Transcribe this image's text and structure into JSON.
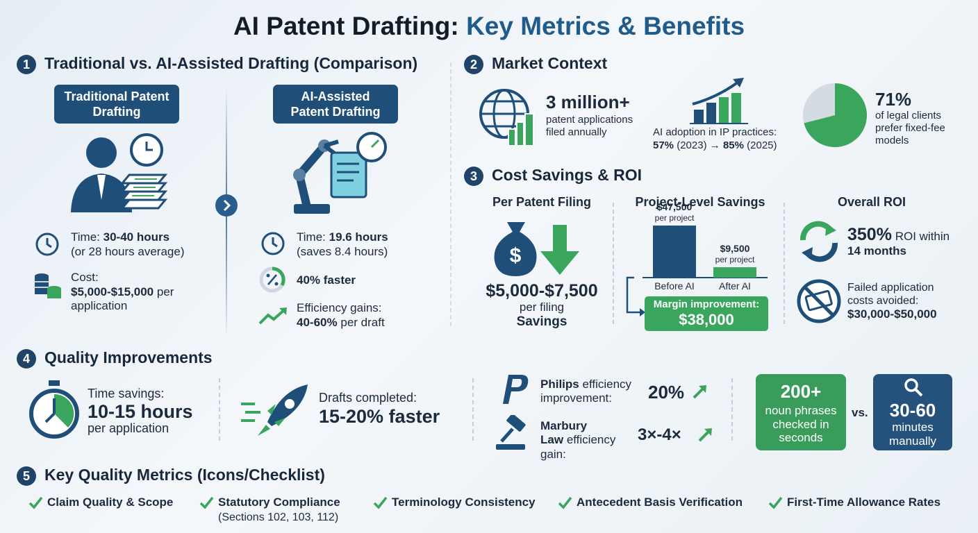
{
  "title": {
    "lead": "AI Patent Drafting:",
    "accent": "Key Metrics & Benefits"
  },
  "comparison": {
    "number": "1",
    "heading": "Traditional vs. AI-Assisted Drafting (Comparison)",
    "traditional": {
      "label": "Traditional Patent Drafting",
      "time_label": "Time:",
      "time_value": "30-40 hours",
      "time_note": "(or 28 hours average)",
      "cost_label": "Cost:",
      "cost_value": "$5,000-$15,000",
      "cost_note": "per application"
    },
    "ai_assisted": {
      "label": "AI-Assisted Patent Drafting",
      "time_label": "Time:",
      "time_value": "19.6 hours",
      "time_note": "(saves 8.4 hours)",
      "speed": "40% faster",
      "efficiency_label": "Efficiency gains:",
      "efficiency_value": "40-60%",
      "efficiency_note": "per draft"
    }
  },
  "market": {
    "number": "2",
    "heading": "Market Context",
    "filings_value": "3 million+",
    "filings_note": "patent applications filed annually",
    "adoption_label": "AI adoption in IP practices:",
    "adoption_from": "57%",
    "adoption_from_year": "(2023) →",
    "adoption_to": "85%",
    "adoption_to_year": "(2025)",
    "pie": {
      "value": 71,
      "label": "71%"
    },
    "pie_note": "of legal clients prefer fixed-fee models"
  },
  "cost_savings": {
    "number": "3",
    "heading": "Cost Savings & ROI",
    "per_filing": {
      "heading": "Per Patent Filing",
      "value": "$5,000-$7,500",
      "unit": "per filing",
      "caption": "Savings"
    },
    "project": {
      "heading": "Project-Level Savings",
      "bars": [
        {
          "name": "Before AI",
          "value": 47500,
          "label": "$47,500",
          "unit": "per project"
        },
        {
          "name": "After AI",
          "value": 9500,
          "label": "$9,500",
          "unit": "per project"
        }
      ],
      "margin_label": "Margin improvement:",
      "margin_value": "$38,000"
    },
    "roi": {
      "heading": "Overall ROI",
      "value": "350%",
      "value_note": "ROI within",
      "period": "14 months",
      "avoided_label": "Failed application costs avoided:",
      "avoided_value": "$30,000-$50,000"
    }
  },
  "quality": {
    "number": "4",
    "heading": "Quality Improvements",
    "time_label": "Time savings:",
    "time_value": "10-15 hours",
    "time_note": "per application",
    "drafts_label": "Drafts completed:",
    "drafts_value": "15-20% faster",
    "philips_name": "Philips",
    "philips_label": "efficiency improvement:",
    "philips_value": "20%",
    "marbury_name": "Marbury Law",
    "marbury_label": "efficiency gain:",
    "marbury_value": "3×-4×",
    "auto_value": "200+",
    "auto_note": "noun phrases checked in seconds",
    "versus": "vs.",
    "manual_value": "30-60",
    "manual_note": "minutes manually"
  },
  "checklist": {
    "number": "5",
    "heading": "Key Quality Metrics (Icons/Checklist)",
    "items": [
      {
        "text": "Claim Quality & Scope"
      },
      {
        "text": "Statutory Compliance",
        "note": "(Sections 102, 103, 112)"
      },
      {
        "text": "Terminology Consistency"
      },
      {
        "text": "Antecedent Basis Verification"
      },
      {
        "text": "First-Time Allowance Rates"
      }
    ]
  }
}
